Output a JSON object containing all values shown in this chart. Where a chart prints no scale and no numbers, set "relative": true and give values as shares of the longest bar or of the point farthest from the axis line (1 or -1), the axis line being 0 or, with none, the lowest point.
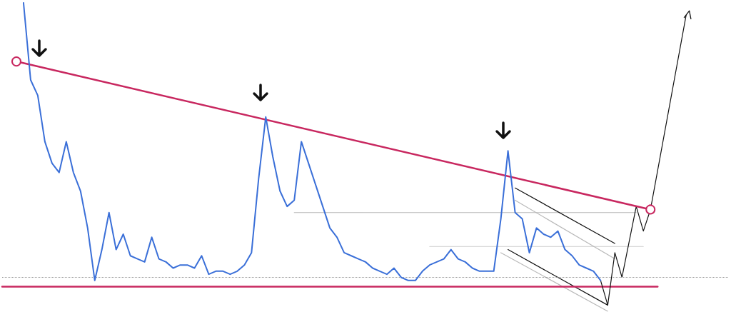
{
  "chart_data": {
    "type": "line",
    "relative": true,
    "grid": false,
    "categories": [
      null,
      null,
      null,
      null,
      null,
      null,
      null,
      null,
      null,
      null,
      null,
      null,
      null,
      null,
      null,
      null,
      null,
      null,
      null,
      null,
      null,
      null,
      null,
      null,
      null,
      null,
      null,
      null,
      null,
      null,
      null,
      null,
      null,
      null,
      null,
      null,
      null,
      null,
      null,
      null,
      null,
      null,
      null,
      null,
      null,
      null,
      null,
      null,
      null,
      null,
      null,
      null,
      null,
      null,
      null,
      null,
      null,
      null,
      null,
      null,
      null,
      null,
      null,
      null,
      null,
      null,
      null,
      null,
      null,
      null,
      null,
      null,
      null,
      null,
      null,
      null,
      null,
      null,
      null,
      null,
      null,
      null,
      null,
      null,
      null,
      null,
      null,
      null,
      null,
      null,
      null,
      null,
      null,
      null,
      null,
      null,
      null,
      null,
      null,
      null,
      null,
      null,
      null
    ],
    "ref_lines": [
      {
        "axis": "y",
        "value": 0.11,
        "color": "#9a9a9a",
        "line_style": "dotted"
      }
    ],
    "series": [
      {
        "color": "#b8b8b8",
        "values": [
          null,
          null,
          null,
          null,
          null,
          null,
          null,
          null,
          null,
          null,
          null,
          null,
          null,
          null,
          null,
          null,
          null,
          null,
          null,
          null,
          null,
          null,
          null,
          null,
          null,
          null,
          null,
          null,
          null,
          null,
          null,
          null,
          null,
          null,
          null,
          null,
          null,
          null,
          null,
          null,
          null,
          0.32,
          null,
          null,
          null,
          null,
          null,
          null,
          null,
          null,
          null,
          null,
          null,
          null,
          null,
          null,
          null,
          null,
          null,
          null,
          null,
          null,
          null,
          null,
          null,
          null,
          null,
          null,
          null,
          null,
          null,
          null,
          null,
          null,
          null,
          null,
          null,
          null,
          null,
          null,
          null,
          null,
          null,
          null,
          null,
          null,
          null,
          null,
          null,
          0.32,
          null,
          null,
          null,
          null,
          null,
          null,
          null,
          null,
          null,
          null,
          null,
          null,
          null
        ]
      },
      {
        "color": "#d8d8d8",
        "values": [
          null,
          null,
          null,
          null,
          null,
          null,
          null,
          null,
          null,
          null,
          null,
          null,
          null,
          null,
          null,
          null,
          null,
          null,
          null,
          null,
          null,
          null,
          null,
          null,
          null,
          null,
          null,
          null,
          null,
          null,
          null,
          null,
          null,
          null,
          null,
          null,
          null,
          null,
          null,
          null,
          null,
          null,
          null,
          null,
          null,
          null,
          null,
          null,
          null,
          null,
          null,
          null,
          null,
          null,
          null,
          null,
          null,
          null,
          null,
          null,
          0.21,
          null,
          null,
          null,
          null,
          null,
          null,
          null,
          null,
          null,
          null,
          null,
          null,
          null,
          null,
          null,
          null,
          null,
          null,
          null,
          null,
          null,
          null,
          null,
          null,
          null,
          null,
          null,
          null,
          null,
          0.21,
          null,
          null,
          null,
          null,
          null,
          null,
          null,
          null,
          null,
          null,
          null,
          null
        ]
      },
      {
        "color": "#b8b8b8",
        "values": [
          null,
          null,
          null,
          null,
          null,
          null,
          null,
          null,
          null,
          null,
          null,
          null,
          null,
          null,
          null,
          null,
          null,
          null,
          null,
          null,
          null,
          null,
          null,
          null,
          null,
          null,
          null,
          null,
          null,
          null,
          null,
          null,
          null,
          null,
          null,
          null,
          null,
          null,
          null,
          null,
          null,
          null,
          null,
          null,
          null,
          null,
          null,
          null,
          null,
          null,
          null,
          null,
          null,
          null,
          null,
          null,
          null,
          null,
          null,
          null,
          null,
          null,
          null,
          null,
          null,
          null,
          null,
          null,
          null,
          null,
          null,
          null,
          0.36,
          null,
          null,
          null,
          null,
          null,
          null,
          null,
          null,
          null,
          null,
          null,
          null,
          null,
          0.17,
          null,
          null,
          null,
          null,
          null,
          null,
          null,
          null,
          null,
          null,
          null,
          null,
          null,
          null,
          null,
          null
        ]
      },
      {
        "color": "#b8b8b8",
        "values": [
          null,
          null,
          null,
          null,
          null,
          null,
          null,
          null,
          null,
          null,
          null,
          null,
          null,
          null,
          null,
          null,
          null,
          null,
          null,
          null,
          null,
          null,
          null,
          null,
          null,
          null,
          null,
          null,
          null,
          null,
          null,
          null,
          null,
          null,
          null,
          null,
          null,
          null,
          null,
          null,
          null,
          null,
          null,
          null,
          null,
          null,
          null,
          null,
          null,
          null,
          null,
          null,
          null,
          null,
          null,
          null,
          null,
          null,
          null,
          null,
          null,
          null,
          null,
          null,
          null,
          null,
          null,
          null,
          null,
          null,
          0.19,
          null,
          null,
          null,
          null,
          null,
          null,
          null,
          null,
          null,
          null,
          null,
          null,
          null,
          null,
          0.0,
          null,
          null,
          null,
          null,
          null,
          null,
          null,
          null,
          null,
          null,
          null,
          null,
          null,
          null,
          null,
          null,
          null
        ]
      },
      {
        "color": "#111111",
        "values": [
          null,
          null,
          null,
          null,
          null,
          null,
          null,
          null,
          null,
          null,
          null,
          null,
          null,
          null,
          null,
          null,
          null,
          null,
          null,
          null,
          null,
          null,
          null,
          null,
          null,
          null,
          null,
          null,
          null,
          null,
          null,
          null,
          null,
          null,
          null,
          null,
          null,
          null,
          null,
          null,
          null,
          null,
          null,
          null,
          null,
          null,
          null,
          null,
          null,
          null,
          null,
          null,
          null,
          null,
          null,
          null,
          null,
          null,
          null,
          null,
          null,
          null,
          null,
          null,
          null,
          null,
          null,
          null,
          null,
          null,
          null,
          null,
          0.4,
          null,
          null,
          null,
          null,
          null,
          null,
          null,
          null,
          null,
          null,
          null,
          null,
          null,
          0.22,
          null,
          null,
          null,
          null,
          null,
          null,
          null,
          null,
          null,
          null,
          null,
          null,
          null,
          null,
          null,
          null
        ]
      },
      {
        "color": "#111111",
        "values": [
          null,
          null,
          null,
          null,
          null,
          null,
          null,
          null,
          null,
          null,
          null,
          null,
          null,
          null,
          null,
          null,
          null,
          null,
          null,
          null,
          null,
          null,
          null,
          null,
          null,
          null,
          null,
          null,
          null,
          null,
          null,
          null,
          null,
          null,
          null,
          null,
          null,
          null,
          null,
          null,
          null,
          null,
          null,
          null,
          null,
          null,
          null,
          null,
          null,
          null,
          null,
          null,
          null,
          null,
          null,
          null,
          null,
          null,
          null,
          null,
          null,
          null,
          null,
          null,
          null,
          null,
          null,
          null,
          null,
          null,
          null,
          0.2,
          null,
          null,
          null,
          null,
          null,
          null,
          null,
          null,
          null,
          null,
          null,
          null,
          null,
          0.02,
          null,
          null,
          null,
          null,
          null,
          null,
          null,
          null,
          null,
          null,
          null,
          null,
          null,
          null,
          null,
          null,
          null
        ]
      },
      {
        "color": "#c8275f",
        "values": [
          0.08,
          null,
          null,
          null,
          null,
          null,
          null,
          null,
          null,
          null,
          null,
          null,
          null,
          null,
          null,
          null,
          null,
          null,
          null,
          null,
          null,
          null,
          null,
          null,
          null,
          null,
          null,
          null,
          null,
          null,
          null,
          null,
          null,
          null,
          null,
          null,
          null,
          null,
          null,
          null,
          null,
          null,
          null,
          null,
          null,
          null,
          null,
          null,
          null,
          null,
          null,
          null,
          null,
          null,
          null,
          null,
          null,
          null,
          null,
          null,
          null,
          null,
          null,
          null,
          null,
          null,
          null,
          null,
          null,
          null,
          null,
          null,
          null,
          null,
          null,
          null,
          null,
          null,
          null,
          null,
          null,
          null,
          null,
          null,
          null,
          null,
          null,
          null,
          null,
          null,
          null,
          null,
          0.08,
          null,
          null,
          null,
          null,
          null,
          null,
          null,
          null,
          null,
          null
        ]
      },
      {
        "color": "#3a6fd8",
        "values": [
          null,
          null,
          null,
          1.0,
          0.75,
          0.7,
          0.55,
          0.48,
          0.45,
          0.55,
          0.45,
          0.39,
          0.27,
          0.1,
          0.2,
          0.32,
          0.2,
          0.25,
          0.18,
          0.17,
          0.16,
          0.24,
          0.17,
          0.16,
          0.14,
          0.15,
          0.15,
          0.14,
          0.18,
          0.12,
          0.13,
          0.13,
          0.12,
          0.13,
          0.15,
          0.19,
          0.43,
          0.63,
          0.5,
          0.39,
          0.34,
          0.36,
          0.55,
          0.48,
          0.41,
          0.34,
          0.27,
          0.24,
          0.19,
          0.18,
          0.17,
          0.16,
          0.14,
          0.13,
          0.12,
          0.14,
          0.11,
          0.1,
          0.1,
          0.13,
          0.15,
          0.16,
          0.17,
          0.2,
          0.17,
          0.16,
          0.14,
          0.13,
          0.13,
          0.13,
          0.3,
          0.52,
          0.32,
          0.3,
          0.19,
          0.27,
          0.25,
          0.24,
          0.26,
          0.2,
          0.18,
          0.15,
          0.14,
          0.13,
          0.1,
          null,
          null,
          null,
          null,
          null,
          null,
          null,
          null,
          null,
          null,
          null,
          null,
          null,
          null,
          null,
          null,
          null,
          null
        ]
      },
      {
        "color": "#111111",
        "values": [
          null,
          null,
          null,
          null,
          null,
          null,
          null,
          null,
          null,
          null,
          null,
          null,
          null,
          null,
          null,
          null,
          null,
          null,
          null,
          null,
          null,
          null,
          null,
          null,
          null,
          null,
          null,
          null,
          null,
          null,
          null,
          null,
          null,
          null,
          null,
          null,
          null,
          null,
          null,
          null,
          null,
          null,
          null,
          null,
          null,
          null,
          null,
          null,
          null,
          null,
          null,
          null,
          null,
          null,
          null,
          null,
          null,
          null,
          null,
          null,
          null,
          null,
          null,
          null,
          null,
          null,
          null,
          null,
          null,
          null,
          null,
          null,
          null,
          null,
          null,
          null,
          null,
          null,
          null,
          null,
          null,
          null,
          null,
          null,
          0.1,
          0.02,
          0.19,
          0.11,
          null,
          0.34,
          0.26,
          0.33,
          null,
          null,
          null,
          null,
          0.96,
          null,
          null,
          null,
          null,
          null,
          null
        ]
      },
      {
        "color": "#c8275f",
        "marker": "circle",
        "values": [
          null,
          null,
          0.81,
          null,
          null,
          null,
          null,
          null,
          null,
          null,
          null,
          null,
          null,
          null,
          null,
          null,
          null,
          null,
          null,
          null,
          null,
          null,
          null,
          null,
          null,
          null,
          null,
          null,
          null,
          null,
          null,
          null,
          null,
          null,
          null,
          null,
          null,
          null,
          null,
          null,
          null,
          null,
          null,
          null,
          null,
          null,
          null,
          null,
          null,
          null,
          null,
          null,
          null,
          null,
          null,
          null,
          null,
          null,
          null,
          null,
          null,
          null,
          null,
          null,
          null,
          null,
          null,
          null,
          null,
          null,
          null,
          null,
          null,
          null,
          null,
          null,
          null,
          null,
          null,
          null,
          null,
          null,
          null,
          null,
          null,
          null,
          null,
          null,
          null,
          null,
          null,
          0.33,
          null,
          null,
          null,
          null,
          null,
          null,
          null,
          null,
          null,
          null,
          null
        ]
      }
    ]
  }
}
